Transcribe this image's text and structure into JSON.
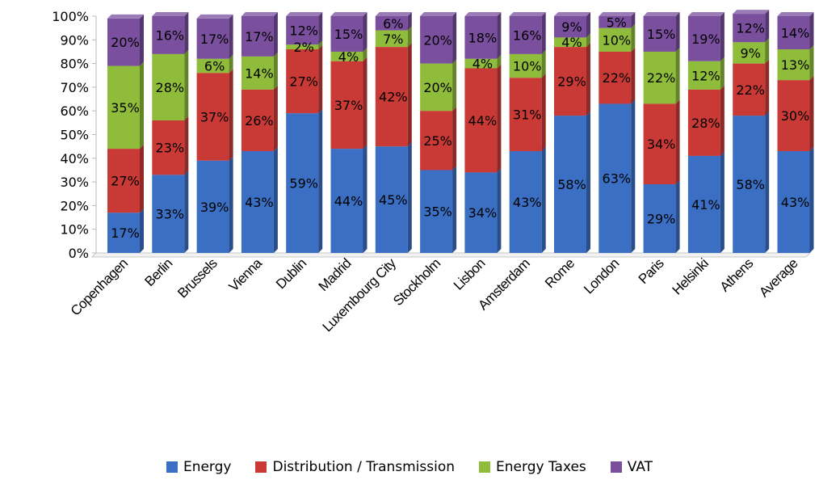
{
  "chart_data": {
    "type": "bar",
    "stacked": true,
    "percent": true,
    "categories": [
      "Copenhagen",
      "Berlin",
      "Brussels",
      "Vienna",
      "Dublin",
      "Madrid",
      "Luxembourg City",
      "Stockholm",
      "Lisbon",
      "Amsterdam",
      "Rome",
      "London",
      "Paris",
      "Helsinki",
      "Athens",
      "Average"
    ],
    "series": [
      {
        "name": "Energy",
        "color": "#3b6fc4",
        "values": [
          17,
          33,
          39,
          43,
          59,
          44,
          45,
          35,
          34,
          43,
          58,
          63,
          29,
          41,
          58,
          43
        ]
      },
      {
        "name": "Distribution / Transmission",
        "color": "#c93a36",
        "values": [
          27,
          23,
          37,
          26,
          27,
          37,
          42,
          25,
          44,
          31,
          29,
          22,
          34,
          28,
          22,
          30
        ]
      },
      {
        "name": "Energy Taxes",
        "color": "#8fbc3a",
        "values": [
          35,
          28,
          6,
          14,
          2,
          4,
          7,
          20,
          4,
          10,
          4,
          10,
          22,
          12,
          9,
          13
        ]
      },
      {
        "name": "VAT",
        "color": "#7a4f9e",
        "values": [
          20,
          16,
          17,
          17,
          12,
          15,
          6,
          20,
          18,
          16,
          9,
          5,
          15,
          19,
          12,
          14
        ]
      }
    ],
    "ylim": [
      0,
      100
    ],
    "yticks": [
      "0%",
      "10%",
      "20%",
      "30%",
      "40%",
      "50%",
      "60%",
      "70%",
      "80%",
      "90%",
      "100%"
    ],
    "data_labels": [
      [
        "17%",
        "33%",
        "39%",
        "43%",
        "59%",
        "44%",
        "45%",
        "35%",
        "34%",
        "43%",
        "58%",
        "63%",
        "29%",
        "41%",
        "58%",
        "43%"
      ],
      [
        "27%",
        "23%",
        "37%",
        "26%",
        "27%",
        "37%",
        "42%",
        "25%",
        "44%",
        "31%",
        "29%",
        "22%",
        "34%",
        "28%",
        "22%",
        "30%"
      ],
      [
        "35%",
        "28%",
        "6%",
        "14%",
        "2%",
        "4%",
        "7%",
        "20%",
        "4%",
        "10%",
        "4%",
        "10%",
        "22%",
        "12%",
        "9%",
        "13%"
      ],
      [
        "20%",
        "16%",
        "17%",
        "17%",
        "12%",
        "15%",
        "6%",
        "20%",
        "18%",
        "16%",
        "9%",
        "5%",
        "15%",
        "19%",
        "12%",
        "14%"
      ]
    ],
    "grid": false,
    "legend_position": "bottom"
  }
}
